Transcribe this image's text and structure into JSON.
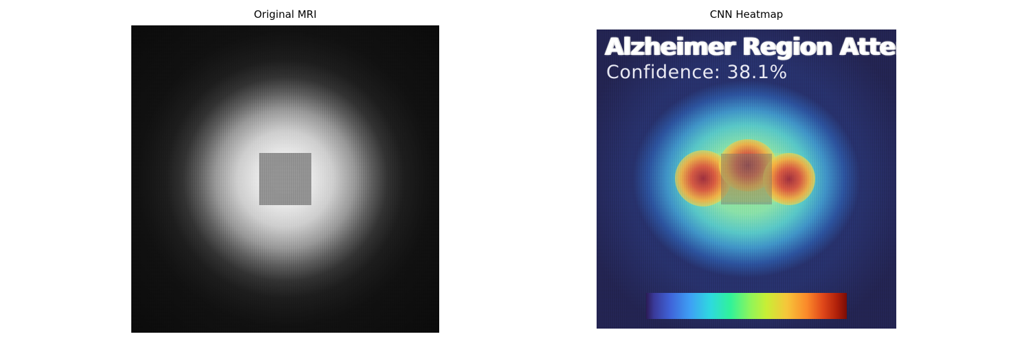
{
  "panels": {
    "left": {
      "title": "Original MRI"
    },
    "right": {
      "title": "CNN Heatmap",
      "overlay_title": "Alzheimer Region Atten",
      "confidence_label": "Confidence: 38.1%",
      "colormap": [
        "#2b1b55",
        "#3f63d8",
        "#2ed9df",
        "#8ff55a",
        "#f6c63a",
        "#e0481a",
        "#7a0c06"
      ]
    }
  }
}
